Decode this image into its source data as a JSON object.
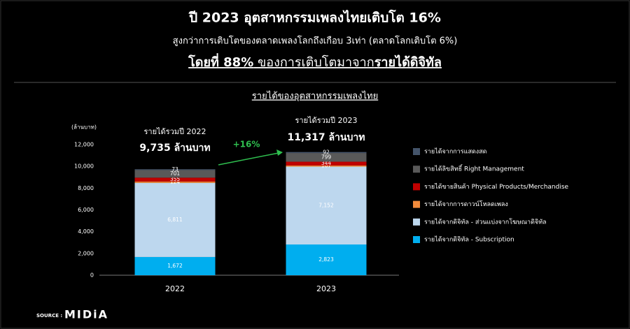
{
  "chart_data": {
    "type": "stacked_bar",
    "title": "ปี 2023 อุตสาหกรรมเพลงไทยเติบโต 16%",
    "subtitle": "สูงกว่าการเติบโตของตลาดเพลงโลกถึงเกือบ 3เท่า (ตลาดโลกเติบโต 6%)",
    "headline": [
      "โดยที่ 88%",
      " ของการเติบโตมาจาก",
      "รายได้ดิจิทัล"
    ],
    "chart_title": "รายได้ของอุตสาหกรรมเพลงไทย",
    "y_label": "(ล้านบาท)",
    "categories": [
      "2022",
      "2023"
    ],
    "series": [
      {
        "name": "รายได้จากดิจิทัล - Subscription",
        "color": "#00aeef",
        "values": [
          1672,
          2823
        ],
        "value_labels": [
          "1,672",
          "2,823"
        ]
      },
      {
        "name": "รายได้จากดิจิทัล - ส่วนแบ่งจากโฆษณาดิจิทัล",
        "color": "#bdd7ee",
        "values": [
          6811,
          7152
        ],
        "value_labels": [
          "6,811",
          "7,152"
        ]
      },
      {
        "name": "รายได้จากการดาวน์โหลดเพลง",
        "color": "#f28b3c",
        "values": [
          124,
          107
        ]
      },
      {
        "name": "รายได้ขายสินค้า Physical Products/Merchandise",
        "color": "#c00000",
        "values": [
          355,
          344
        ]
      },
      {
        "name": "รายได้ลิขสิทธิ์ Right Management",
        "color": "#595959",
        "values": [
          701,
          799
        ]
      },
      {
        "name": "รายได้จากการแสดงสด",
        "color": "#44546a",
        "values": [
          73,
          92
        ]
      }
    ],
    "ylim": [
      0,
      12000
    ],
    "yticks": [
      0,
      {
        "value": 2000,
        "label": "2,000"
      },
      {
        "value": 4000,
        "label": "4,000"
      },
      {
        "value": 6000,
        "label": "6,000"
      },
      {
        "value": 8000,
        "label": "8,000"
      },
      {
        "value": 10000,
        "label": "10,000"
      },
      {
        "value": 12000,
        "label": "12,000"
      }
    ],
    "grid": false,
    "annotations": [
      {
        "label": "รายได้รวมปี 2022",
        "total": "9,735 ล้านบาท"
      },
      {
        "label": "รายได้รวมปี 2023",
        "total": "11,317 ล้านบาท"
      }
    ],
    "growth": "+16%",
    "source": [
      "SOURCE :",
      "MIDiA"
    ]
  }
}
